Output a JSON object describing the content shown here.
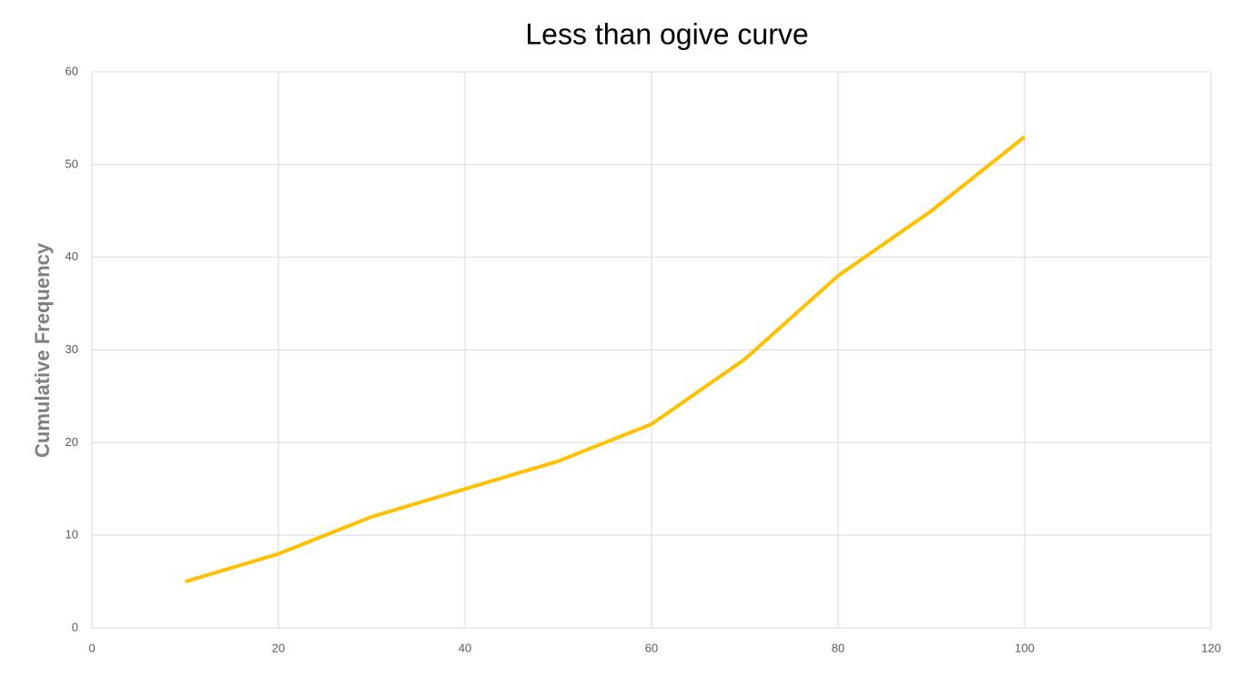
{
  "chart_data": {
    "type": "line",
    "title": "Less than ogive curve",
    "y_label": "Cumulative Frequency",
    "x": [
      10,
      20,
      30,
      40,
      50,
      60,
      70,
      80,
      90,
      100
    ],
    "values": [
      5,
      8,
      12,
      15,
      18,
      22,
      29,
      38,
      45,
      53
    ],
    "color": "#FFC000",
    "xlim": [
      0,
      120
    ],
    "xticks": [
      0,
      20,
      40,
      60,
      80,
      100,
      120
    ],
    "ylim": [
      0,
      60
    ],
    "yticks": [
      0,
      10,
      20,
      30,
      40,
      50,
      60
    ],
    "grid": true
  }
}
